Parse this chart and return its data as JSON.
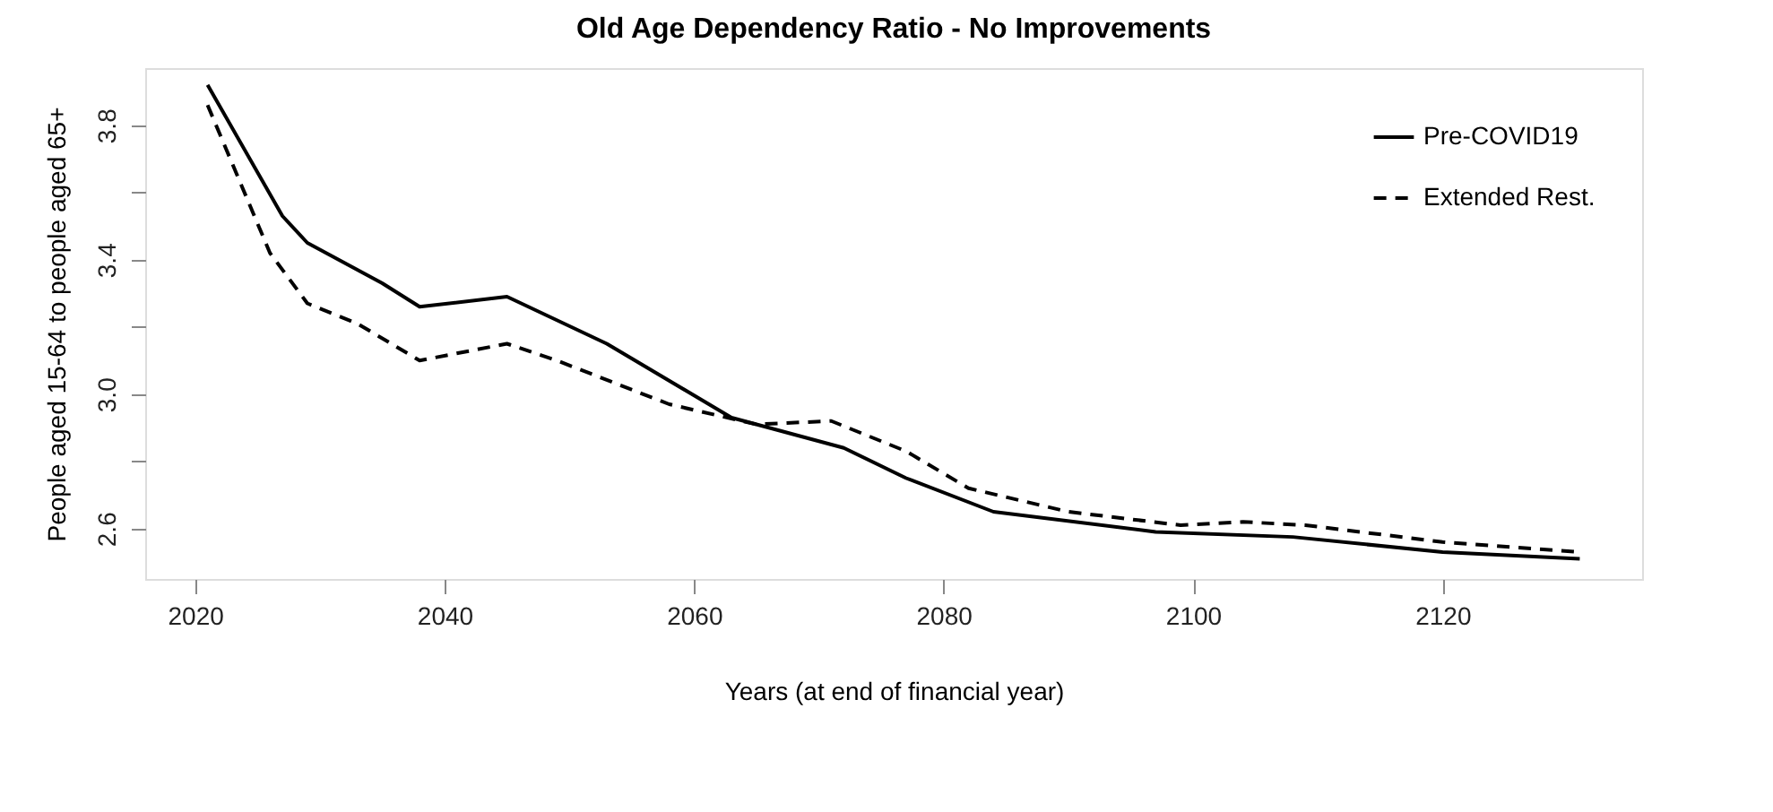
{
  "chart_data": {
    "type": "line",
    "title": "Old Age Dependency Ratio - No Improvements",
    "xlabel": "Years (at end of financial year)",
    "ylabel": "People aged 15-64 to people aged 65+",
    "xlim": [
      2016,
      2136
    ],
    "xticks": [
      2020,
      2040,
      2060,
      2080,
      2100,
      2120
    ],
    "ylim": [
      2.45,
      3.97
    ],
    "yticks": [
      2.6,
      {
        "value": 2.8,
        "label": null
      },
      {
        "value": 3.0,
        "label": "3.0"
      },
      {
        "value": 3.2,
        "label": null
      },
      3.4,
      {
        "value": 3.6,
        "label": null
      },
      3.8
    ],
    "grid": false,
    "legend": "top right",
    "marker": "none",
    "series": [
      {
        "name": "Pre-COVID19",
        "color": "#000000",
        "line_style": "solid",
        "x": [
          2021,
          2027,
          2029,
          2035,
          2038,
          2045,
          2053,
          2063,
          2072,
          2077,
          2084,
          2097,
          2108,
          2120,
          2131
        ],
        "values": [
          3.92,
          3.53,
          3.45,
          3.33,
          3.26,
          3.29,
          3.15,
          2.93,
          2.84,
          2.75,
          2.65,
          2.59,
          2.575,
          2.53,
          2.51
        ]
      },
      {
        "name": "Extended Rest.",
        "color": "#000000",
        "line_style": "dashed",
        "x": [
          2021,
          2026,
          2029,
          2033,
          2038,
          2045,
          2049,
          2058,
          2065,
          2071,
          2077,
          2082,
          2090,
          2099,
          2104,
          2109,
          2120,
          2131
        ],
        "values": [
          3.86,
          3.42,
          3.27,
          3.21,
          3.1,
          3.15,
          3.1,
          2.97,
          2.91,
          2.92,
          2.83,
          2.72,
          2.65,
          2.61,
          2.62,
          2.61,
          2.56,
          2.53
        ]
      }
    ]
  }
}
